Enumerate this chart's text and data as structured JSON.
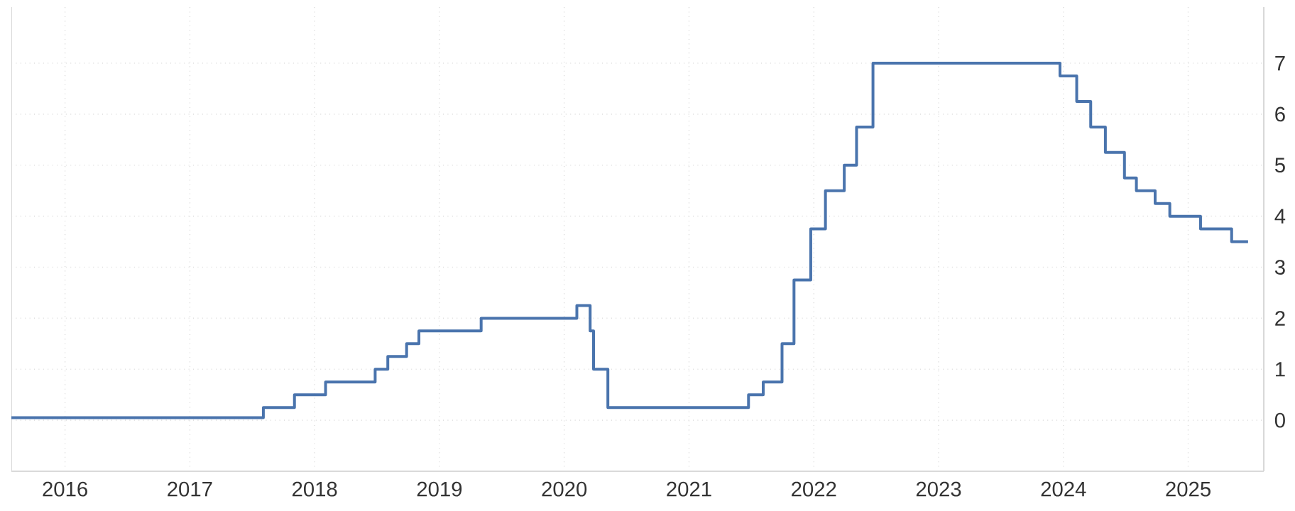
{
  "chart_data": {
    "type": "step",
    "x": [
      "2015-07-28",
      "2017-08-04",
      "2017-11-03",
      "2018-02-02",
      "2018-06-27",
      "2018-08-03",
      "2018-09-27",
      "2018-11-02",
      "2019-05-03",
      "2020-02-07",
      "2020-03-17",
      "2020-03-27",
      "2020-05-08",
      "2021-06-24",
      "2021-08-06",
      "2021-09-30",
      "2021-11-04",
      "2021-12-23",
      "2022-02-04",
      "2022-03-31",
      "2022-05-06",
      "2022-06-23",
      "2023-12-22",
      "2024-02-09",
      "2024-03-21",
      "2024-05-03",
      "2024-06-28",
      "2024-08-02",
      "2024-09-26",
      "2024-11-08",
      "2025-02-06",
      "2025-05-08",
      "2025-06-25"
    ],
    "series": [
      {
        "color": "#4a74ad",
        "values": [
          0.05,
          0.25,
          0.5,
          0.75,
          1.0,
          1.25,
          1.5,
          1.75,
          2.0,
          2.25,
          1.75,
          1.0,
          0.25,
          0.5,
          0.75,
          1.5,
          2.75,
          3.75,
          4.5,
          5.0,
          5.75,
          7.0,
          6.75,
          6.25,
          5.75,
          5.25,
          4.75,
          4.5,
          4.25,
          4.0,
          3.75,
          3.5,
          3.5
        ]
      }
    ],
    "xlim": [
      "2015-07-28",
      "2025-08-10"
    ],
    "xticks": [
      "2016",
      "2017",
      "2018",
      "2019",
      "2020",
      "2021",
      "2022",
      "2023",
      "2024",
      "2025"
    ],
    "ylim": [
      -1,
      8.1
    ],
    "yticks": [
      0,
      1,
      2,
      3,
      4,
      5,
      6,
      7
    ],
    "grid": true,
    "line_style": "solid",
    "marker": "none"
  }
}
